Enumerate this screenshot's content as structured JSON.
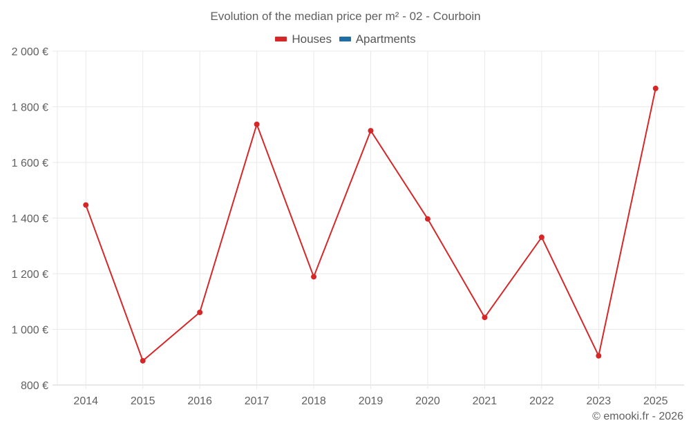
{
  "title": "Evolution of the median price per m² - 02 - Courboin",
  "legend": [
    {
      "label": "Houses",
      "color": "#d62728"
    },
    {
      "label": "Apartments",
      "color": "#1f6fa5"
    }
  ],
  "credit": "© emooki.fr - 2026",
  "colors": {
    "houses": "#d62728",
    "apartments": "#1f6fa5",
    "grid": "#e9e9e9",
    "axis": "#d0d0d0"
  },
  "chart_data": {
    "type": "line",
    "title": "Evolution of the median price per m² - 02 - Courboin",
    "xlabel": "",
    "ylabel": "",
    "categories": [
      "2014",
      "2015",
      "2016",
      "2017",
      "2018",
      "2019",
      "2020",
      "2021",
      "2022",
      "2023",
      "2025"
    ],
    "series": [
      {
        "name": "Houses",
        "color": "#d62728",
        "values": [
          1447,
          887,
          1061,
          1737,
          1189,
          1714,
          1397,
          1043,
          1331,
          905,
          1866
        ]
      },
      {
        "name": "Apartments",
        "color": "#1f6fa5",
        "values": []
      }
    ],
    "ylim": [
      800,
      2000
    ],
    "yticks": [
      800,
      1000,
      1200,
      1400,
      1600,
      1800,
      2000
    ],
    "ytick_labels": [
      "800 €",
      "1 000 €",
      "1 200 €",
      "1 400 €",
      "1 600 €",
      "1 800 €",
      "2 000 €"
    ],
    "grid": true,
    "legend_position": "top"
  }
}
